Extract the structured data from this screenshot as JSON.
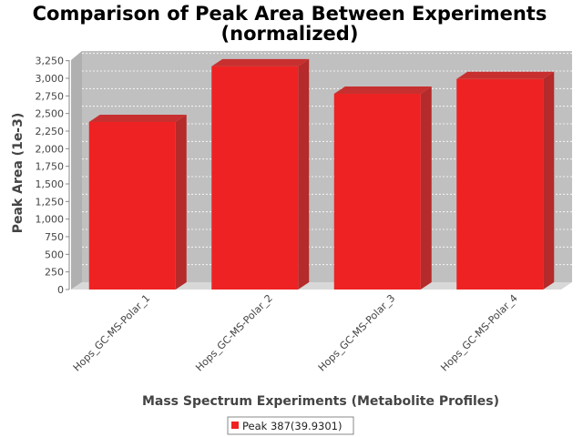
{
  "chart_data": {
    "type": "bar",
    "title": "Comparison of Peak Area Between Experiments",
    "subtitle": "(normalized)",
    "xlabel": "Mass Spectrum Experiments (Metabolite Profiles)",
    "ylabel": "Peak Area (1e-3)",
    "categories": [
      "Hops_GC-MS-Polar_1",
      "Hops_GC-MS-Polar_2",
      "Hops_GC-MS-Polar_3",
      "Hops_GC-MS-Polar_4"
    ],
    "series": [
      {
        "name": "Peak 387(39.9301)",
        "values": [
          2380,
          3170,
          2780,
          2990
        ],
        "color": "#ee2222"
      }
    ],
    "yticks": [
      "0",
      "250",
      "500",
      "750",
      "1,000",
      "1,250",
      "1,500",
      "1,750",
      "2,000",
      "2,250",
      "2,500",
      "2,750",
      "3,000",
      "3,250"
    ],
    "ylim": [
      0,
      3375
    ],
    "grid": true,
    "legend_position": "bottom-center",
    "plot_background": "#c0c0c0",
    "rendering": "3d"
  }
}
